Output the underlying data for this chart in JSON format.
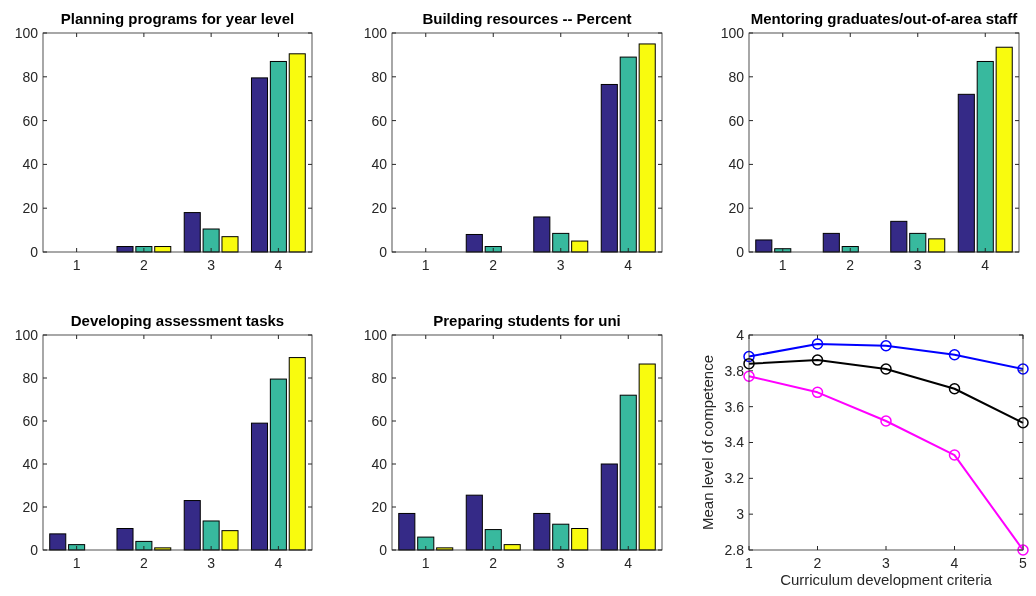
{
  "chart_data": [
    {
      "type": "bar",
      "title": "Planning programs for year level",
      "categories": [
        "1",
        "2",
        "3",
        "4"
      ],
      "ylim": [
        0,
        100
      ],
      "yticks": [
        0,
        20,
        40,
        60,
        80,
        100
      ],
      "series": [
        {
          "color": "#352a87",
          "values": [
            0,
            2.5,
            18,
            79.5
          ]
        },
        {
          "color": "#38b99e",
          "values": [
            0,
            2.5,
            10.5,
            87
          ]
        },
        {
          "color": "#f9fb0e",
          "values": [
            0,
            2.5,
            7,
            90.5
          ]
        }
      ]
    },
    {
      "type": "bar",
      "title": "Building resources -- Percent",
      "categories": [
        "1",
        "2",
        "3",
        "4"
      ],
      "ylim": [
        0,
        100
      ],
      "yticks": [
        0,
        20,
        40,
        60,
        80,
        100
      ],
      "series": [
        {
          "color": "#352a87",
          "values": [
            0,
            8,
            16,
            76.5
          ]
        },
        {
          "color": "#38b99e",
          "values": [
            0,
            2.5,
            8.5,
            89
          ]
        },
        {
          "color": "#f9fb0e",
          "values": [
            0,
            0,
            5,
            95
          ]
        }
      ]
    },
    {
      "type": "bar",
      "title": "Mentoring graduates/out-of-area staff",
      "categories": [
        "1",
        "2",
        "3",
        "4"
      ],
      "ylim": [
        0,
        100
      ],
      "yticks": [
        0,
        20,
        40,
        60,
        80,
        100
      ],
      "series": [
        {
          "color": "#352a87",
          "values": [
            5.5,
            8.5,
            14,
            72
          ]
        },
        {
          "color": "#38b99e",
          "values": [
            1.5,
            2.5,
            8.5,
            87
          ]
        },
        {
          "color": "#f9fb0e",
          "values": [
            0,
            0,
            6,
            93.5
          ]
        }
      ]
    },
    {
      "type": "bar",
      "title": "Developing assessment tasks",
      "categories": [
        "1",
        "2",
        "3",
        "4"
      ],
      "ylim": [
        0,
        100
      ],
      "yticks": [
        0,
        20,
        40,
        60,
        80,
        100
      ],
      "series": [
        {
          "color": "#352a87",
          "values": [
            7.5,
            10,
            23,
            59
          ]
        },
        {
          "color": "#38b99e",
          "values": [
            2.5,
            4,
            13.5,
            79.5
          ]
        },
        {
          "color": "#f9fb0e",
          "values": [
            0,
            1,
            9,
            89.5
          ]
        }
      ]
    },
    {
      "type": "bar",
      "title": "Preparing students for uni",
      "categories": [
        "1",
        "2",
        "3",
        "4"
      ],
      "ylim": [
        0,
        100
      ],
      "yticks": [
        0,
        20,
        40,
        60,
        80,
        100
      ],
      "series": [
        {
          "color": "#352a87",
          "values": [
            17,
            25.5,
            17,
            40
          ]
        },
        {
          "color": "#38b99e",
          "values": [
            6,
            9.5,
            12,
            72
          ]
        },
        {
          "color": "#f9fb0e",
          "values": [
            1,
            2.5,
            10,
            86.5
          ]
        }
      ]
    },
    {
      "type": "line",
      "xlabel": "Curriculum development criteria",
      "ylabel": "Mean level of competence",
      "x": [
        1,
        2,
        3,
        4,
        5
      ],
      "xlim": [
        1,
        5
      ],
      "xticks": [
        1,
        2,
        3,
        4,
        5
      ],
      "ylim": [
        2.8,
        4
      ],
      "yticks": [
        2.8,
        3,
        3.2,
        3.4,
        3.6,
        3.8,
        4
      ],
      "marker": "circle",
      "series": [
        {
          "color": "#0000ff",
          "values": [
            3.88,
            3.95,
            3.94,
            3.89,
            3.81
          ]
        },
        {
          "color": "#000000",
          "values": [
            3.84,
            3.86,
            3.81,
            3.7,
            3.51
          ]
        },
        {
          "color": "#ff00ff",
          "values": [
            3.77,
            3.68,
            3.52,
            3.33,
            2.8
          ]
        }
      ]
    }
  ]
}
